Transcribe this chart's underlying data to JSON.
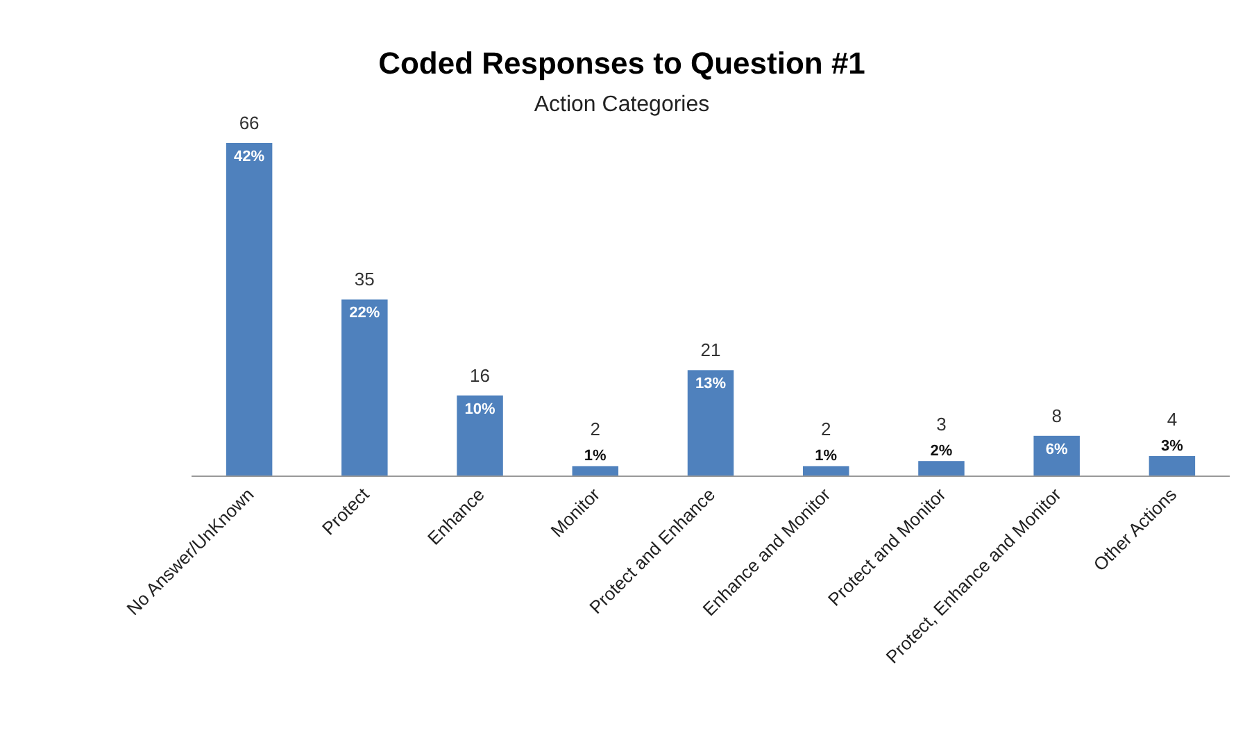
{
  "chart_data": {
    "type": "bar",
    "title": "Coded Responses to Question #1",
    "subtitle": "Action Categories",
    "categories": [
      "No Answer/UnKnown",
      "Protect",
      "Enhance",
      "Monitor",
      "Protect and Enhance",
      "Enhance and Monitor",
      "Protect and Monitor",
      "Protect, Enhance and Monitor",
      "Other Actions"
    ],
    "values": [
      66,
      35,
      16,
      2,
      21,
      2,
      3,
      8,
      4
    ],
    "color": "#4f81bd",
    "data_labels": true,
    "annotations": [
      {
        "text": "42%",
        "x": "No Answer/UnKnown",
        "y": 66
      },
      {
        "text": "22%",
        "x": "Protect",
        "y": 35
      },
      {
        "text": "10%",
        "x": "Enhance",
        "y": 16
      },
      {
        "text": "1%",
        "x": "Monitor",
        "y": 2
      },
      {
        "text": "13%",
        "x": "Protect and Enhance",
        "y": 21
      },
      {
        "text": "1%",
        "x": "Enhance and Monitor",
        "y": 2
      },
      {
        "text": "2%",
        "x": "Protect and Monitor",
        "y": 3
      },
      {
        "text": "6%",
        "x": "Protect, Enhance and Monitor",
        "y": 8
      },
      {
        "text": "3%",
        "x": "Other Actions",
        "y": 4
      }
    ]
  }
}
